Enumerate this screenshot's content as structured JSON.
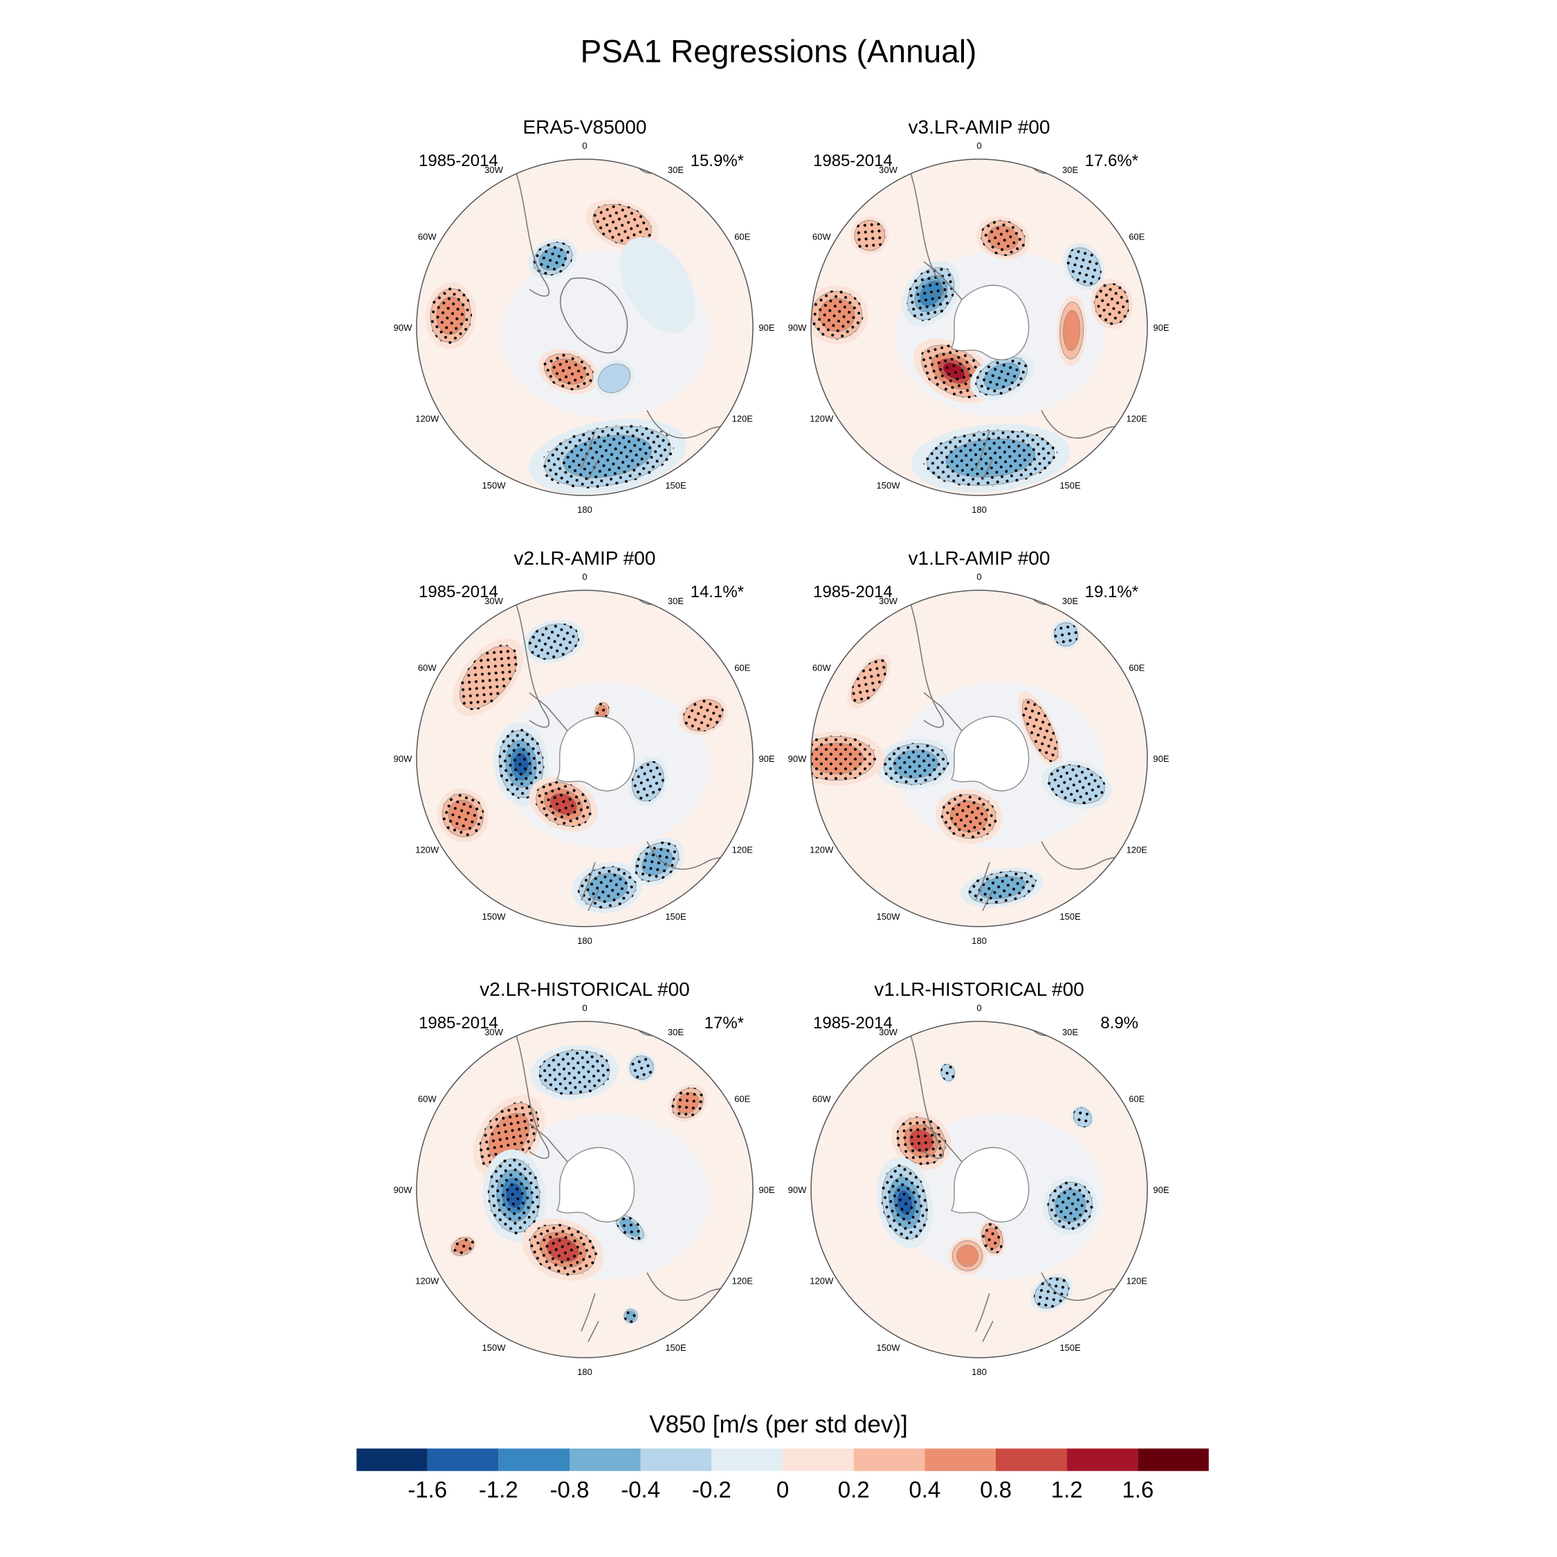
{
  "figure": {
    "title": "PSA1 Regressions (Annual)",
    "colorbar_label": "V850 [m/s (per std dev)]"
  },
  "lon_labels": [
    "0",
    "30E",
    "60E",
    "90E",
    "120E",
    "150E",
    "180",
    "150W",
    "120W",
    "90W",
    "60W",
    "30W"
  ],
  "panels": [
    {
      "name": "ERA5-V85000",
      "period": "1985-2014",
      "pct": "15.9%*",
      "blobs": [
        {
          "lon": 20,
          "r": 0.65,
          "rx": 0.18,
          "ry": 0.11,
          "v": 0.35,
          "stip": true
        },
        {
          "lon": -25,
          "r": 0.45,
          "rx": 0.12,
          "ry": 0.09,
          "v": -0.5,
          "stip": true
        },
        {
          "lon": -85,
          "r": 0.8,
          "rx": 0.16,
          "ry": 0.12,
          "v": 0.55,
          "stip": true
        },
        {
          "lon": -160,
          "r": 0.28,
          "rx": 0.15,
          "ry": 0.1,
          "v": 0.45,
          "stip": true
        },
        {
          "lon": 170,
          "r": 0.78,
          "rx": 0.38,
          "ry": 0.17,
          "v": -0.45,
          "stip": true
        },
        {
          "lon": 150,
          "r": 0.35,
          "rx": 0.1,
          "ry": 0.08,
          "v": -0.2,
          "stip": false
        },
        {
          "lon": 60,
          "r": 0.5,
          "rx": 0.25,
          "ry": 0.15,
          "v": -0.12,
          "stip": false
        }
      ]
    },
    {
      "name": "v3.LR-AMIP  #00",
      "period": "1985-2014",
      "pct": "17.6%*",
      "blobs": [
        {
          "lon": 15,
          "r": 0.55,
          "rx": 0.13,
          "ry": 0.1,
          "v": 0.4,
          "stip": true
        },
        {
          "lon": 60,
          "r": 0.72,
          "rx": 0.12,
          "ry": 0.09,
          "v": -0.3,
          "stip": true
        },
        {
          "lon": -55,
          "r": 0.35,
          "rx": 0.17,
          "ry": 0.12,
          "v": -0.85,
          "stip": true
        },
        {
          "lon": -150,
          "r": 0.3,
          "rx": 0.21,
          "ry": 0.13,
          "v": 1.2,
          "stip": true
        },
        {
          "lon": 155,
          "r": 0.32,
          "rx": 0.16,
          "ry": 0.1,
          "v": -0.55,
          "stip": true
        },
        {
          "lon": 175,
          "r": 0.78,
          "rx": 0.38,
          "ry": 0.16,
          "v": -0.45,
          "stip": true
        },
        {
          "lon": -85,
          "r": 0.85,
          "rx": 0.14,
          "ry": 0.15,
          "v": 0.45,
          "stip": true
        },
        {
          "lon": -50,
          "r": 0.85,
          "rx": 0.09,
          "ry": 0.09,
          "v": 0.3,
          "stip": true
        },
        {
          "lon": 92,
          "r": 0.55,
          "rx": 0.17,
          "ry": 0.07,
          "v": 0.4,
          "stip": false
        },
        {
          "lon": 80,
          "r": 0.8,
          "rx": 0.12,
          "ry": 0.1,
          "v": 0.3,
          "stip": true
        }
      ]
    },
    {
      "name": "v2.LR-AMIP  #00",
      "period": "1985-2014",
      "pct": "14.1%*",
      "blobs": [
        {
          "lon": -15,
          "r": 0.72,
          "rx": 0.15,
          "ry": 0.1,
          "v": -0.35,
          "stip": true
        },
        {
          "lon": -50,
          "r": 0.75,
          "rx": 0.22,
          "ry": 0.12,
          "v": 0.35,
          "stip": true
        },
        {
          "lon": -95,
          "r": 0.38,
          "rx": 0.2,
          "ry": 0.13,
          "v": -1.3,
          "stip": true
        },
        {
          "lon": -155,
          "r": 0.3,
          "rx": 0.17,
          "ry": 0.12,
          "v": 0.9,
          "stip": true
        },
        {
          "lon": -115,
          "r": 0.8,
          "rx": 0.13,
          "ry": 0.12,
          "v": 0.4,
          "stip": true
        },
        {
          "lon": 170,
          "r": 0.78,
          "rx": 0.17,
          "ry": 0.12,
          "v": -0.45,
          "stip": true
        },
        {
          "lon": 145,
          "r": 0.75,
          "rx": 0.14,
          "ry": 0.1,
          "v": -0.4,
          "stip": true
        },
        {
          "lon": 110,
          "r": 0.4,
          "rx": 0.12,
          "ry": 0.09,
          "v": -0.35,
          "stip": true
        },
        {
          "lon": 70,
          "r": 0.75,
          "rx": 0.09,
          "ry": 0.12,
          "v": 0.25,
          "stip": true
        },
        {
          "lon": 20,
          "r": 0.3,
          "rx": 0.04,
          "ry": 0.05,
          "v": 0.4,
          "stip": true
        }
      ]
    },
    {
      "name": "v1.LR-AMIP  #00",
      "period": "1985-2014",
      "pct": "19.1%*",
      "blobs": [
        {
          "lon": 35,
          "r": 0.9,
          "rx": 0.07,
          "ry": 0.07,
          "v": -0.3,
          "stip": true
        },
        {
          "lon": 65,
          "r": 0.4,
          "rx": 0.2,
          "ry": 0.07,
          "v": 0.35,
          "stip": true
        },
        {
          "lon": -55,
          "r": 0.8,
          "rx": 0.15,
          "ry": 0.07,
          "v": 0.3,
          "stip": true
        },
        {
          "lon": -95,
          "r": 0.38,
          "rx": 0.12,
          "ry": 0.19,
          "v": -0.7,
          "stip": true
        },
        {
          "lon": -90,
          "r": 0.85,
          "rx": 0.13,
          "ry": 0.23,
          "v": 0.5,
          "stip": true
        },
        {
          "lon": -170,
          "r": 0.35,
          "rx": 0.16,
          "ry": 0.13,
          "v": 0.75,
          "stip": true
        },
        {
          "lon": 170,
          "r": 0.78,
          "rx": 0.2,
          "ry": 0.09,
          "v": -0.4,
          "stip": true
        },
        {
          "lon": 105,
          "r": 0.6,
          "rx": 0.11,
          "ry": 0.17,
          "v": -0.35,
          "stip": true
        }
      ]
    },
    {
      "name": "v2.LR-HISTORICAL  #00",
      "period": "1985-2014",
      "pct": "17%*",
      "blobs": [
        {
          "lon": -5,
          "r": 0.7,
          "rx": 0.21,
          "ry": 0.13,
          "v": -0.35,
          "stip": true
        },
        {
          "lon": -55,
          "r": 0.55,
          "rx": 0.22,
          "ry": 0.14,
          "v": 0.45,
          "stip": true
        },
        {
          "lon": -95,
          "r": 0.42,
          "rx": 0.22,
          "ry": 0.15,
          "v": -1.3,
          "stip": true
        },
        {
          "lon": -160,
          "r": 0.38,
          "rx": 0.2,
          "ry": 0.14,
          "v": 0.9,
          "stip": true
        },
        {
          "lon": 25,
          "r": 0.8,
          "rx": 0.07,
          "ry": 0.07,
          "v": -0.3,
          "stip": true
        },
        {
          "lon": 50,
          "r": 0.8,
          "rx": 0.08,
          "ry": 0.1,
          "v": 0.45,
          "stip": true
        },
        {
          "lon": -115,
          "r": 0.8,
          "rx": 0.05,
          "ry": 0.07,
          "v": 0.4,
          "stip": true
        },
        {
          "lon": 130,
          "r": 0.35,
          "rx": 0.05,
          "ry": 0.1,
          "v": -0.4,
          "stip": true
        },
        {
          "lon": 160,
          "r": 0.8,
          "rx": 0.04,
          "ry": 0.04,
          "v": -0.4,
          "stip": true
        }
      ]
    },
    {
      "name": "v1.LR-HISTORICAL  #00",
      "period": "1985-2014",
      "pct": "8.9%",
      "blobs": [
        {
          "lon": -50,
          "r": 0.45,
          "rx": 0.13,
          "ry": 0.15,
          "v": 0.8,
          "stip": true
        },
        {
          "lon": -100,
          "r": 0.45,
          "rx": 0.22,
          "ry": 0.13,
          "v": -1.2,
          "stip": true
        },
        {
          "lon": -170,
          "r": 0.4,
          "rx": 0.09,
          "ry": 0.09,
          "v": 0.7,
          "stip": false
        },
        {
          "lon": 165,
          "r": 0.3,
          "rx": 0.06,
          "ry": 0.09,
          "v": 0.45,
          "stip": true
        },
        {
          "lon": 100,
          "r": 0.55,
          "rx": 0.14,
          "ry": 0.13,
          "v": -0.5,
          "stip": true
        },
        {
          "lon": 145,
          "r": 0.75,
          "rx": 0.11,
          "ry": 0.08,
          "v": -0.35,
          "stip": true
        },
        {
          "lon": -15,
          "r": 0.72,
          "rx": 0.04,
          "ry": 0.05,
          "v": -0.2,
          "stip": true
        },
        {
          "lon": 55,
          "r": 0.75,
          "rx": 0.06,
          "ry": 0.05,
          "v": -0.2,
          "stip": true
        }
      ]
    }
  ],
  "colorbar": {
    "colors": [
      "#08306b",
      "#1f5ea7",
      "#3987c0",
      "#74afd4",
      "#b6d5ea",
      "#e3edf4",
      "#fbe3d9",
      "#f7bca3",
      "#ec8f71",
      "#cb4a43",
      "#a5152a",
      "#67000d"
    ],
    "labels": [
      "-1.6",
      "-1.2",
      "-0.8",
      "-0.4",
      "-0.2",
      "0",
      "0.2",
      "0.4",
      "0.8",
      "1.2",
      "1.6"
    ],
    "levels": [
      -1.6,
      -1.2,
      -0.8,
      -0.4,
      -0.2,
      0,
      0.2,
      0.4,
      0.8,
      1.2,
      1.6
    ]
  }
}
